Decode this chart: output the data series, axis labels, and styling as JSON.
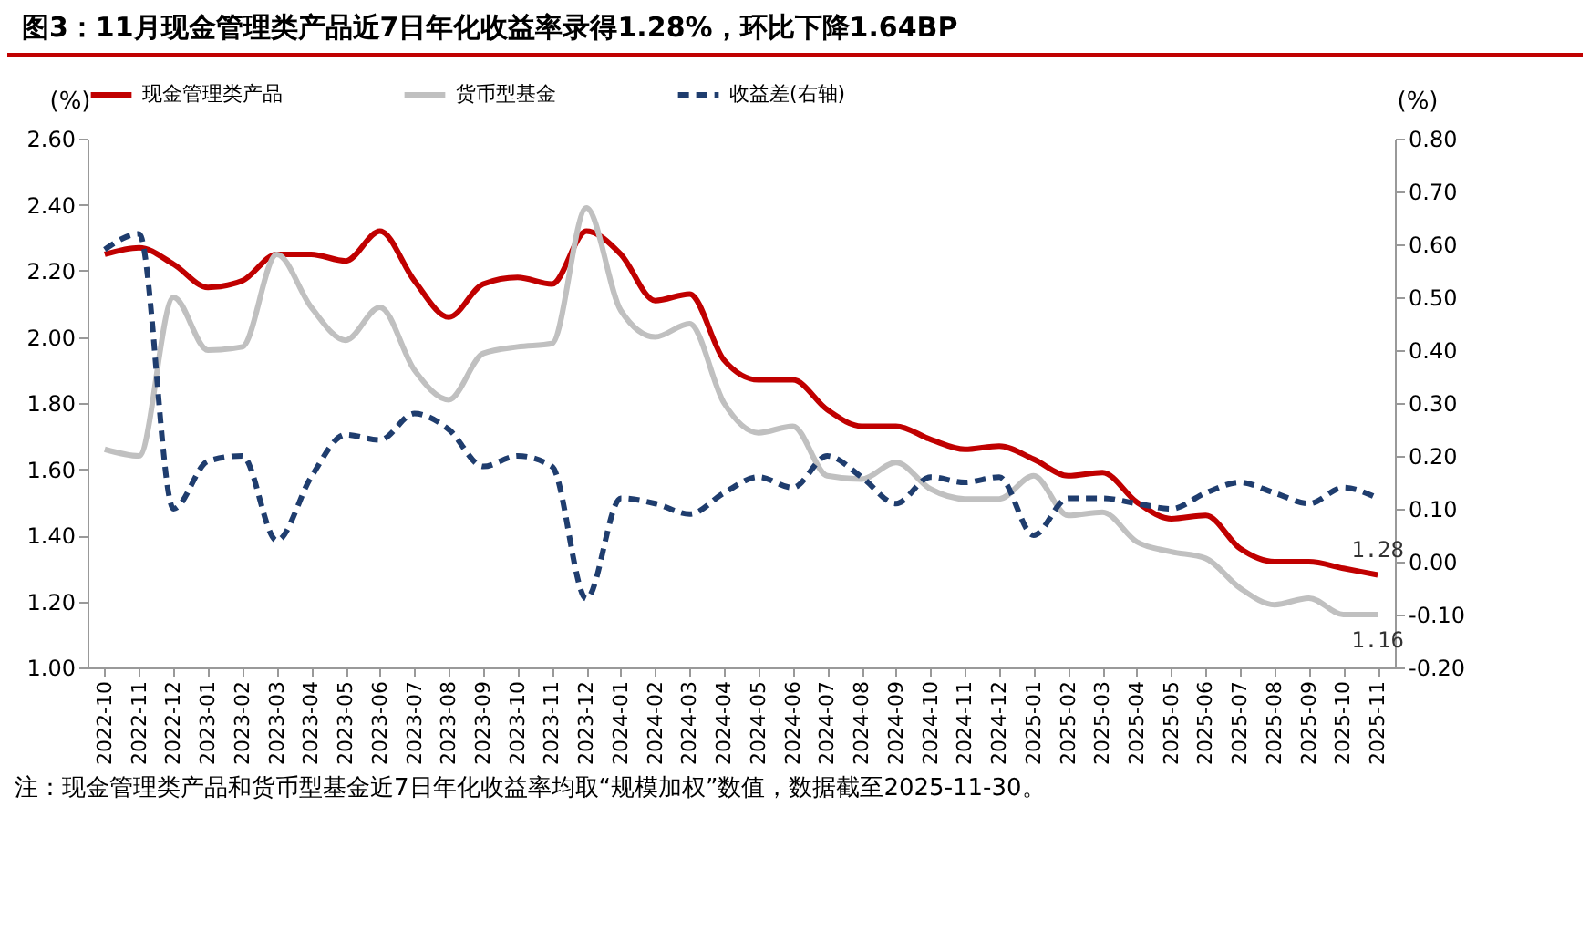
{
  "chart_data": {
    "type": "line",
    "title": "图3：11月现金管理类产品近7日年化收益率录得1.28%，环比下降1.64BP",
    "ylabel": "(%)",
    "y2label": "(%)",
    "categories": [
      "2022-10",
      "2022-11",
      "2022-12",
      "2023-01",
      "2023-02",
      "2023-03",
      "2023-04",
      "2023-05",
      "2023-06",
      "2023-07",
      "2023-08",
      "2023-09",
      "2023-10",
      "2023-11",
      "2023-12",
      "2024-01",
      "2024-02",
      "2024-03",
      "2024-04",
      "2024-05",
      "2024-06",
      "2024-07",
      "2024-08",
      "2024-09",
      "2024-10",
      "2024-11",
      "2024-12",
      "2025-01",
      "2025-02",
      "2025-03",
      "2025-04",
      "2025-05",
      "2025-06",
      "2025-07",
      "2025-08",
      "2025-09",
      "2025-10",
      "2025-11"
    ],
    "series": [
      {
        "name": "现金管理类产品",
        "color": "#c00000",
        "line_style": "solid",
        "values": [
          2.25,
          2.27,
          2.22,
          2.15,
          2.17,
          2.25,
          2.25,
          2.23,
          2.32,
          2.17,
          2.06,
          2.16,
          2.18,
          2.16,
          2.32,
          2.25,
          2.11,
          2.13,
          1.93,
          1.87,
          1.87,
          1.78,
          1.73,
          1.73,
          1.69,
          1.66,
          1.67,
          1.63,
          1.58,
          1.59,
          1.5,
          1.45,
          1.46,
          1.36,
          1.32,
          1.32,
          1.3,
          1.28
        ]
      },
      {
        "name": "货币型基金",
        "color": "#c0c0c0",
        "line_style": "solid",
        "values": [
          1.66,
          1.64,
          2.12,
          1.96,
          1.97,
          2.25,
          2.09,
          1.99,
          2.09,
          1.9,
          1.81,
          1.95,
          1.97,
          1.98,
          2.39,
          2.08,
          2.0,
          2.04,
          1.8,
          1.71,
          1.73,
          1.58,
          1.57,
          1.62,
          1.54,
          1.51,
          1.51,
          1.58,
          1.46,
          1.47,
          1.38,
          1.35,
          1.33,
          1.24,
          1.19,
          1.21,
          1.16,
          1.16
        ]
      },
      {
        "name": "收益差(右轴)",
        "color": "#1f3d6e",
        "line_style": "dashed",
        "axis": "y2",
        "values": [
          0.59,
          0.62,
          0.1,
          0.19,
          0.2,
          0.04,
          0.16,
          0.24,
          0.23,
          0.28,
          0.25,
          0.18,
          0.2,
          0.18,
          -0.07,
          0.12,
          0.11,
          0.09,
          0.13,
          0.16,
          0.14,
          0.2,
          0.16,
          0.11,
          0.16,
          0.15,
          0.16,
          0.05,
          0.12,
          0.12,
          0.11,
          0.1,
          0.13,
          0.15,
          0.13,
          0.11,
          0.14,
          0.12
        ]
      }
    ],
    "ylim": [
      1.0,
      2.6
    ],
    "yticks": [
      {
        "value": 1.0,
        "label": "1.00"
      },
      {
        "value": 1.2,
        "label": "1.20"
      },
      {
        "value": 1.4,
        "label": "1.40"
      },
      {
        "value": 1.6,
        "label": "1.60"
      },
      {
        "value": 1.8,
        "label": "1.80"
      },
      {
        "value": 2.0,
        "label": "2.00"
      },
      {
        "value": 2.2,
        "label": "2.20"
      },
      {
        "value": 2.4,
        "label": "2.40"
      },
      {
        "value": 2.6,
        "label": "2.60"
      }
    ],
    "y2lim": [
      -0.2,
      0.8
    ],
    "y2ticks": [
      {
        "value": -0.2,
        "label": "-0.20"
      },
      {
        "value": -0.1,
        "label": "-0.10"
      },
      {
        "value": 0.0,
        "label": "0.00"
      },
      {
        "value": 0.1,
        "label": "0.10"
      },
      {
        "value": 0.2,
        "label": "0.20"
      },
      {
        "value": 0.3,
        "label": "0.30"
      },
      {
        "value": 0.4,
        "label": "0.40"
      },
      {
        "value": 0.5,
        "label": "0.50"
      },
      {
        "value": 0.6,
        "label": "0.60"
      },
      {
        "value": 0.7,
        "label": "0.70"
      },
      {
        "value": 0.8,
        "label": "0.80"
      }
    ],
    "grid": false,
    "legend": "top",
    "marker": "none",
    "annotations": [
      {
        "text": "1.28",
        "x": "2025-11",
        "y": 1.28
      },
      {
        "text": "1.16",
        "x": "2025-11",
        "y": 1.16
      },
      "注：现金管理类产品和货币型基金近7日年化收益率均取“规模加权”数值，数据截至2025-11-30。"
    ]
  }
}
